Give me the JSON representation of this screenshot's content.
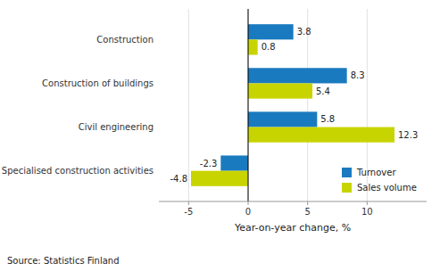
{
  "chart_data": {
    "type": "bar",
    "orientation": "horizontal",
    "categories": [
      "Specialised construction activities",
      "Civil engineering",
      "Construction of buildings",
      "Construction"
    ],
    "series": [
      {
        "name": "Turnover",
        "color": "#1a7abf",
        "values": [
          -2.3,
          5.8,
          8.3,
          3.8
        ]
      },
      {
        "name": "Sales volume",
        "color": "#c8d400",
        "values": [
          -4.8,
          12.3,
          5.4,
          0.8
        ]
      }
    ],
    "xlabel": "Year-on-year change, %",
    "xlim": [
      -7.5,
      15
    ],
    "xticks": [
      -5,
      0,
      5,
      10
    ],
    "grid": true,
    "legend": "lower right",
    "data_labels": true,
    "source": "Source: Statistics Finland"
  }
}
